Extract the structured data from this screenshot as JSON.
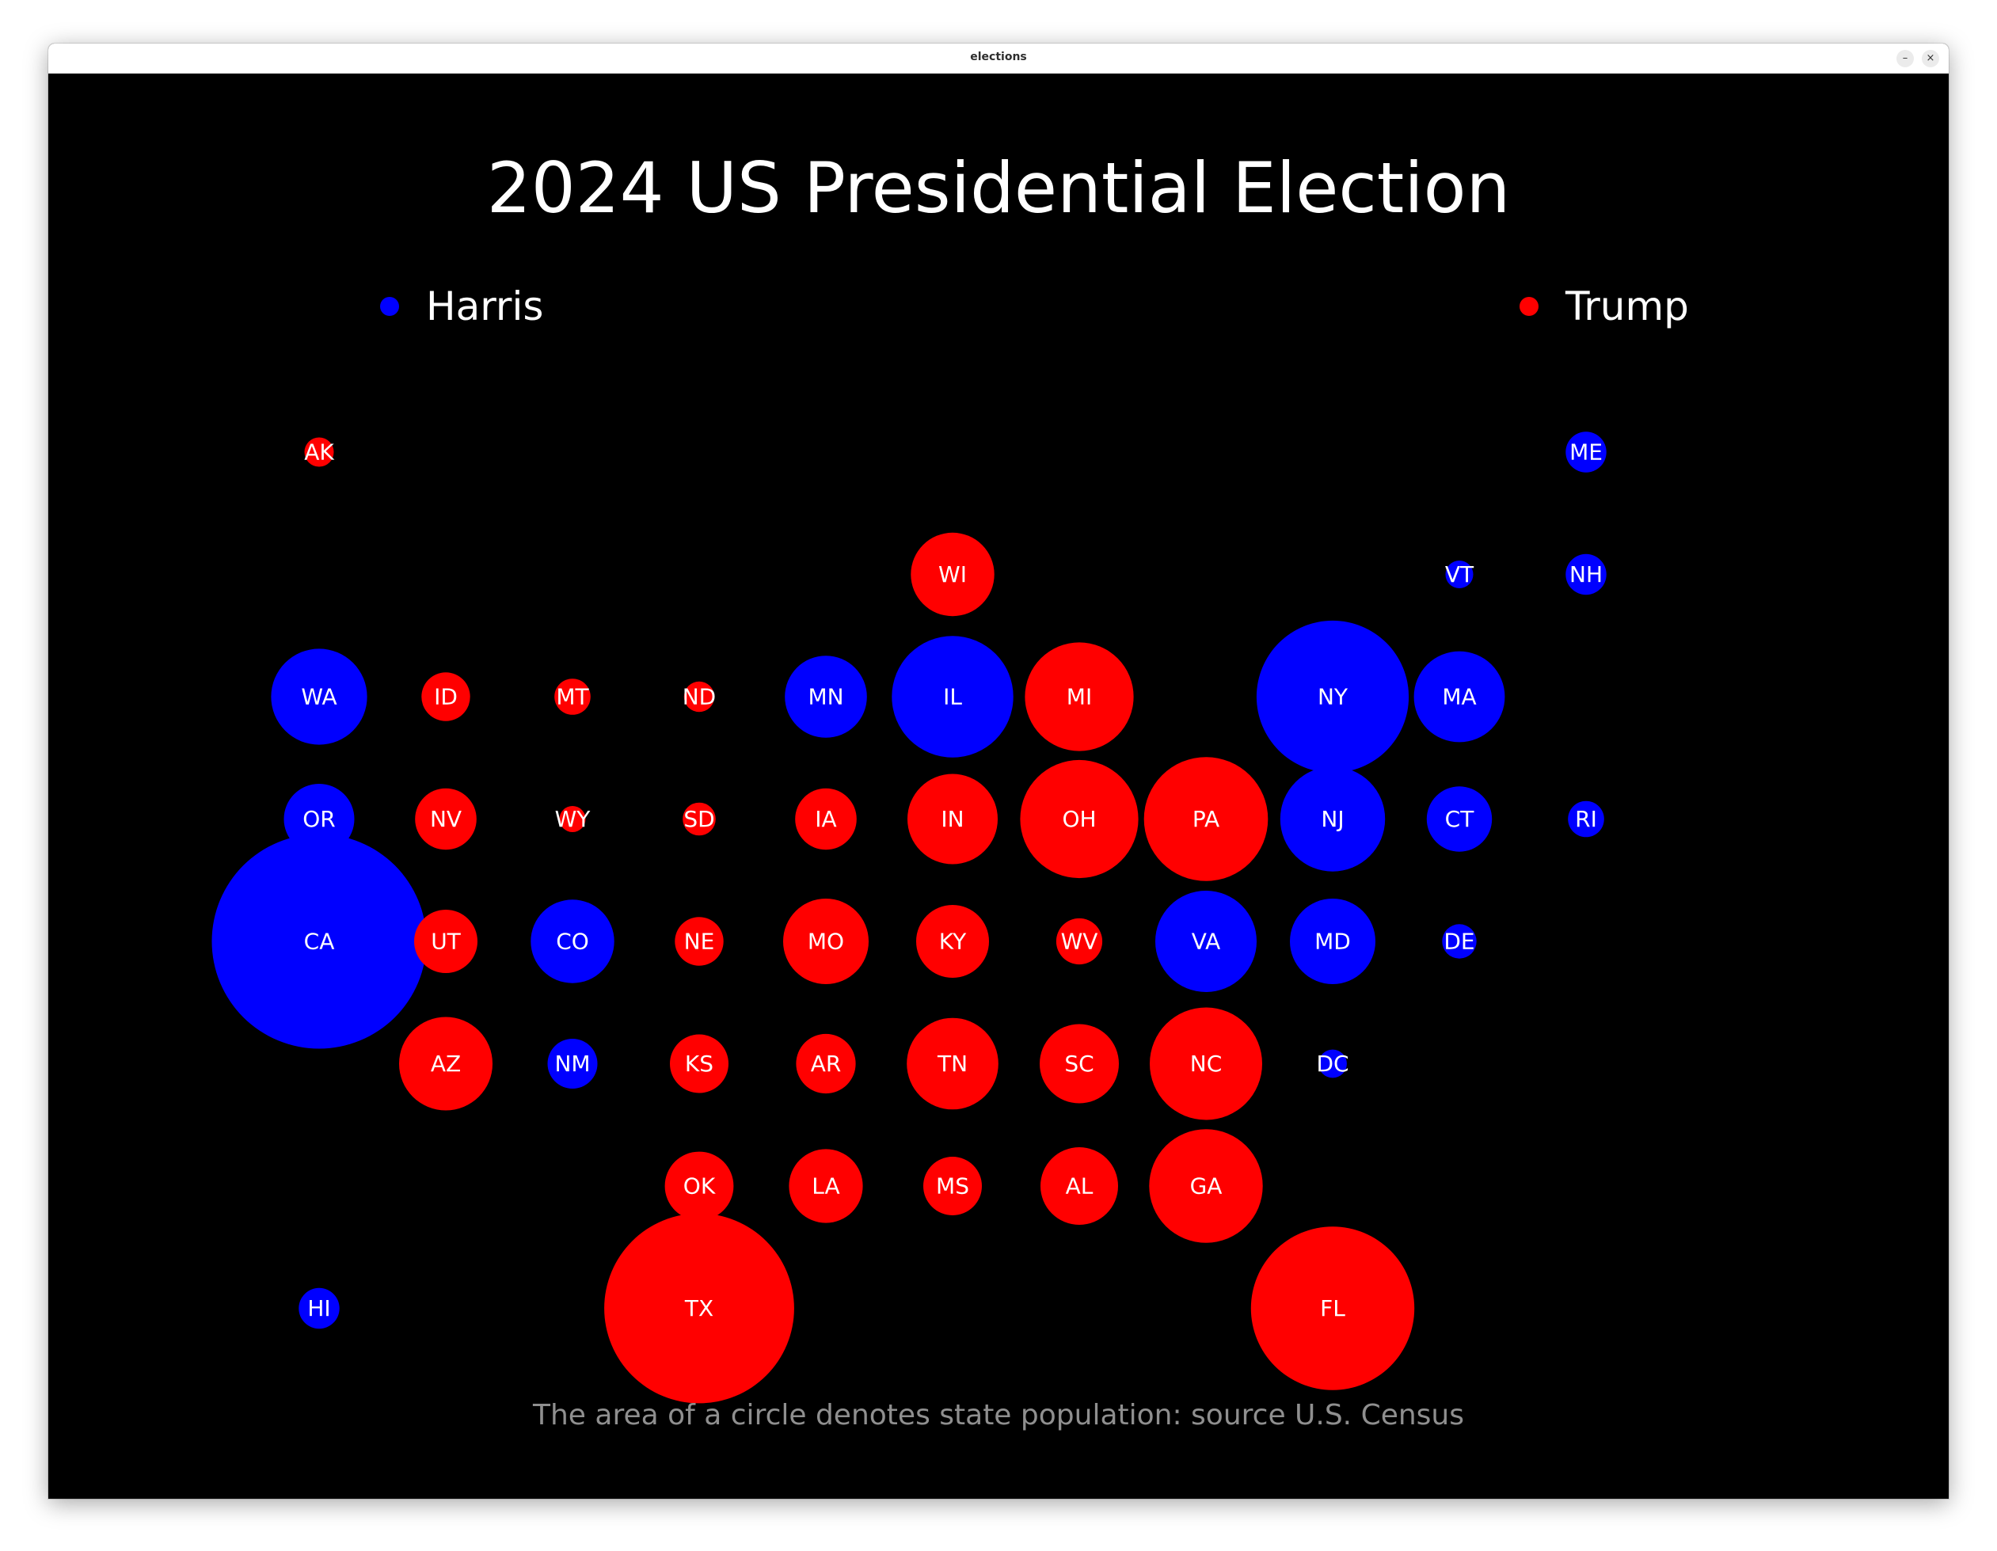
{
  "window": {
    "title": "elections",
    "minimize_label": "–",
    "close_label": "×"
  },
  "colors": {
    "background": "#000000",
    "harris": "#0000ff",
    "trump": "#ff0000",
    "text": "#ffffff",
    "footnote": "#8f8f8f"
  },
  "chart_data": {
    "type": "scatter",
    "title": "2024 US Presidential Election",
    "subtitle": "",
    "footnote": "The area of a circle denotes state population: source U.S. Census",
    "legend": [
      {
        "name": "Harris",
        "party": "harris",
        "color": "#0000ff"
      },
      {
        "name": "Trump",
        "party": "trump",
        "color": "#ff0000"
      }
    ],
    "legend_placement": "top, spread left and right",
    "grid": false,
    "size_encoding": "area proportional to state population (millions)",
    "x_range": [
      0,
      10
    ],
    "y_range": [
      0,
      7
    ],
    "states": [
      {
        "state": "AK",
        "col": 0,
        "row": 0,
        "winner": "trump",
        "population": 0.73
      },
      {
        "state": "ME",
        "col": 10,
        "row": 0,
        "winner": "harris",
        "population": 1.4
      },
      {
        "state": "WI",
        "col": 5,
        "row": 1,
        "winner": "trump",
        "population": 5.9
      },
      {
        "state": "VT",
        "col": 9,
        "row": 1,
        "winner": "harris",
        "population": 0.65
      },
      {
        "state": "NH",
        "col": 10,
        "row": 1,
        "winner": "harris",
        "population": 1.4
      },
      {
        "state": "WA",
        "col": 0,
        "row": 2,
        "winner": "harris",
        "population": 7.8
      },
      {
        "state": "ID",
        "col": 1,
        "row": 2,
        "winner": "trump",
        "population": 2.0
      },
      {
        "state": "MT",
        "col": 2,
        "row": 2,
        "winner": "trump",
        "population": 1.1
      },
      {
        "state": "ND",
        "col": 3,
        "row": 2,
        "winner": "trump",
        "population": 0.78
      },
      {
        "state": "MN",
        "col": 4,
        "row": 2,
        "winner": "harris",
        "population": 5.7
      },
      {
        "state": "IL",
        "col": 5,
        "row": 2,
        "winner": "harris",
        "population": 12.5
      },
      {
        "state": "MI",
        "col": 6,
        "row": 2,
        "winner": "trump",
        "population": 10.0
      },
      {
        "state": "NY",
        "col": 8,
        "row": 2,
        "winner": "harris",
        "population": 19.6
      },
      {
        "state": "MA",
        "col": 9,
        "row": 2,
        "winner": "harris",
        "population": 7.0
      },
      {
        "state": "OR",
        "col": 0,
        "row": 3,
        "winner": "harris",
        "population": 4.2
      },
      {
        "state": "NV",
        "col": 1,
        "row": 3,
        "winner": "trump",
        "population": 3.2
      },
      {
        "state": "WY",
        "col": 2,
        "row": 3,
        "winner": "trump",
        "population": 0.58
      },
      {
        "state": "SD",
        "col": 3,
        "row": 3,
        "winner": "trump",
        "population": 0.92
      },
      {
        "state": "IA",
        "col": 4,
        "row": 3,
        "winner": "trump",
        "population": 3.2
      },
      {
        "state": "IN",
        "col": 5,
        "row": 3,
        "winner": "trump",
        "population": 6.9
      },
      {
        "state": "OH",
        "col": 6,
        "row": 3,
        "winner": "trump",
        "population": 11.8
      },
      {
        "state": "PA",
        "col": 7,
        "row": 3,
        "winner": "trump",
        "population": 13.0
      },
      {
        "state": "NJ",
        "col": 8,
        "row": 3,
        "winner": "harris",
        "population": 9.3
      },
      {
        "state": "CT",
        "col": 9,
        "row": 3,
        "winner": "harris",
        "population": 3.6
      },
      {
        "state": "RI",
        "col": 10,
        "row": 3,
        "winner": "harris",
        "population": 1.1
      },
      {
        "state": "CA",
        "col": 0,
        "row": 4,
        "winner": "harris",
        "population": 39.0
      },
      {
        "state": "UT",
        "col": 1,
        "row": 4,
        "winner": "trump",
        "population": 3.4
      },
      {
        "state": "CO",
        "col": 2,
        "row": 4,
        "winner": "harris",
        "population": 5.9
      },
      {
        "state": "NE",
        "col": 3,
        "row": 4,
        "winner": "trump",
        "population": 2.0
      },
      {
        "state": "MO",
        "col": 4,
        "row": 4,
        "winner": "trump",
        "population": 6.2
      },
      {
        "state": "KY",
        "col": 5,
        "row": 4,
        "winner": "trump",
        "population": 4.5
      },
      {
        "state": "WV",
        "col": 6,
        "row": 4,
        "winner": "trump",
        "population": 1.8
      },
      {
        "state": "VA",
        "col": 7,
        "row": 4,
        "winner": "harris",
        "population": 8.7
      },
      {
        "state": "MD",
        "col": 8,
        "row": 4,
        "winner": "harris",
        "population": 6.2
      },
      {
        "state": "DE",
        "col": 9,
        "row": 4,
        "winner": "harris",
        "population": 1.0
      },
      {
        "state": "AZ",
        "col": 1,
        "row": 5,
        "winner": "trump",
        "population": 7.4
      },
      {
        "state": "NM",
        "col": 2,
        "row": 5,
        "winner": "harris",
        "population": 2.1
      },
      {
        "state": "KS",
        "col": 3,
        "row": 5,
        "winner": "trump",
        "population": 2.9
      },
      {
        "state": "AR",
        "col": 4,
        "row": 5,
        "winner": "trump",
        "population": 3.0
      },
      {
        "state": "TN",
        "col": 5,
        "row": 5,
        "winner": "trump",
        "population": 7.1
      },
      {
        "state": "SC",
        "col": 6,
        "row": 5,
        "winner": "trump",
        "population": 5.3
      },
      {
        "state": "NC",
        "col": 7,
        "row": 5,
        "winner": "trump",
        "population": 10.7
      },
      {
        "state": "DC",
        "col": 8,
        "row": 5,
        "winner": "harris",
        "population": 0.68
      },
      {
        "state": "OK",
        "col": 3,
        "row": 6,
        "winner": "trump",
        "population": 4.0
      },
      {
        "state": "LA",
        "col": 4,
        "row": 6,
        "winner": "trump",
        "population": 4.6
      },
      {
        "state": "MS",
        "col": 5,
        "row": 6,
        "winner": "trump",
        "population": 2.9
      },
      {
        "state": "AL",
        "col": 6,
        "row": 6,
        "winner": "trump",
        "population": 5.1
      },
      {
        "state": "GA",
        "col": 7,
        "row": 6,
        "winner": "trump",
        "population": 10.9
      },
      {
        "state": "HI",
        "col": 0,
        "row": 7,
        "winner": "harris",
        "population": 1.4
      },
      {
        "state": "TX",
        "col": 3,
        "row": 7,
        "winner": "trump",
        "population": 30.5
      },
      {
        "state": "FL",
        "col": 8,
        "row": 7,
        "winner": "trump",
        "population": 22.6
      }
    ]
  }
}
